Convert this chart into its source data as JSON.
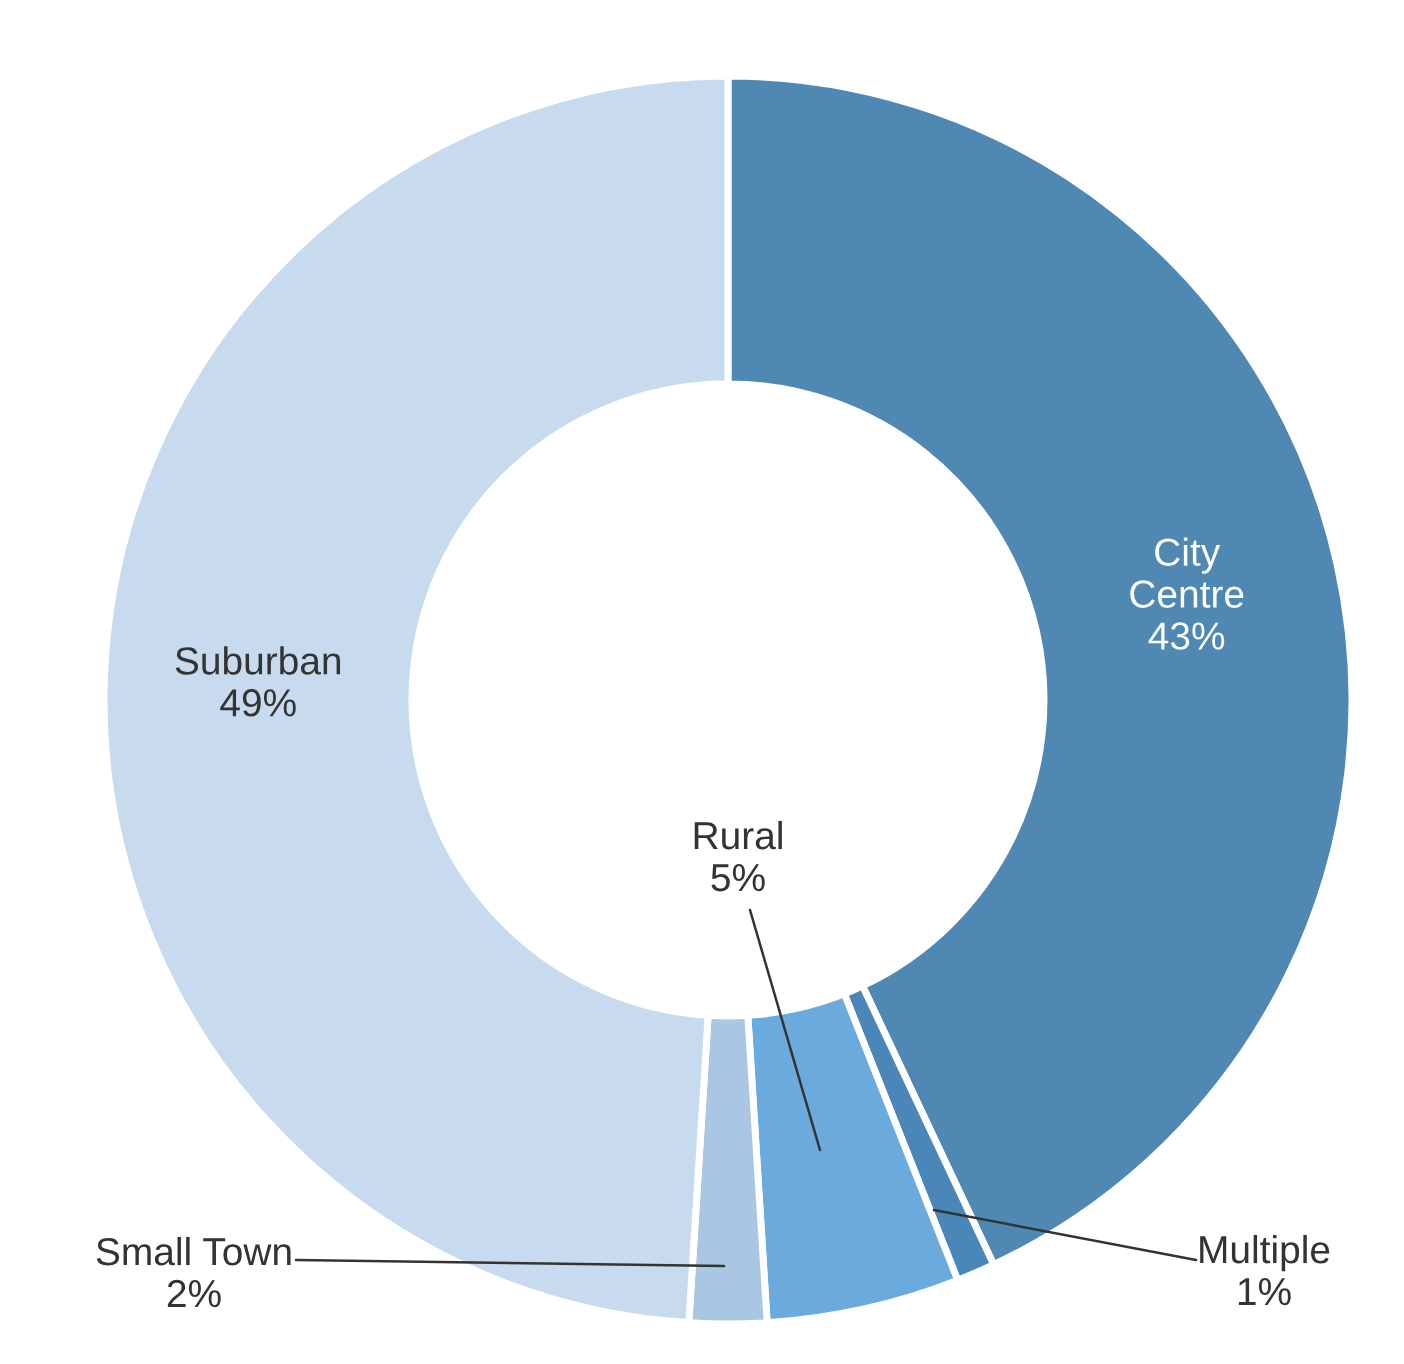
{
  "chart_data": {
    "type": "donut",
    "categories": [
      "City Centre",
      "Multiple",
      "Rural",
      "Small Town",
      "Suburban"
    ],
    "values": [
      43,
      1,
      5,
      2,
      49
    ],
    "colors": [
      "#5088b4",
      "#4a86b8",
      "#6aaadc",
      "#a9c6e3",
      "#c8dbee"
    ],
    "value_labels": [
      "43%",
      "1%",
      "5%",
      "2%",
      "49%"
    ],
    "legend": false
  }
}
